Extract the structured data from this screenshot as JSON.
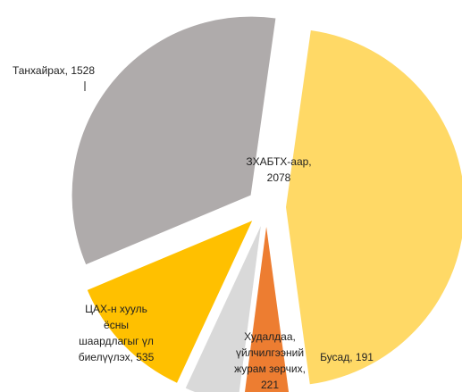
{
  "chart_data": {
    "type": "pie",
    "categories": [
      "ЗХАБТХ-аар",
      "Бусад",
      "Худалдаа, үйлчилгээний журам зөрчих",
      "ЦАХ-н хууль ёсны шаардлагыг үл биелүүлэх",
      "Танхайрах"
    ],
    "values": [
      2078,
      191,
      221,
      535,
      1528
    ],
    "value_labels": [
      "ЗХАБТХ-аар, 2078",
      "Бусад, 191",
      "Худалдаа, үйлчилгээний журам зөрчих, 221",
      "ЦАХ-н хууль ёсны шаардлагыг үл биелүүлэх, 535",
      "Танхайрах, 1528"
    ],
    "colors": [
      "#FFD966",
      "#ED7D31",
      "#D9D9D9",
      "#FFC000",
      "#AFABAB"
    ]
  }
}
